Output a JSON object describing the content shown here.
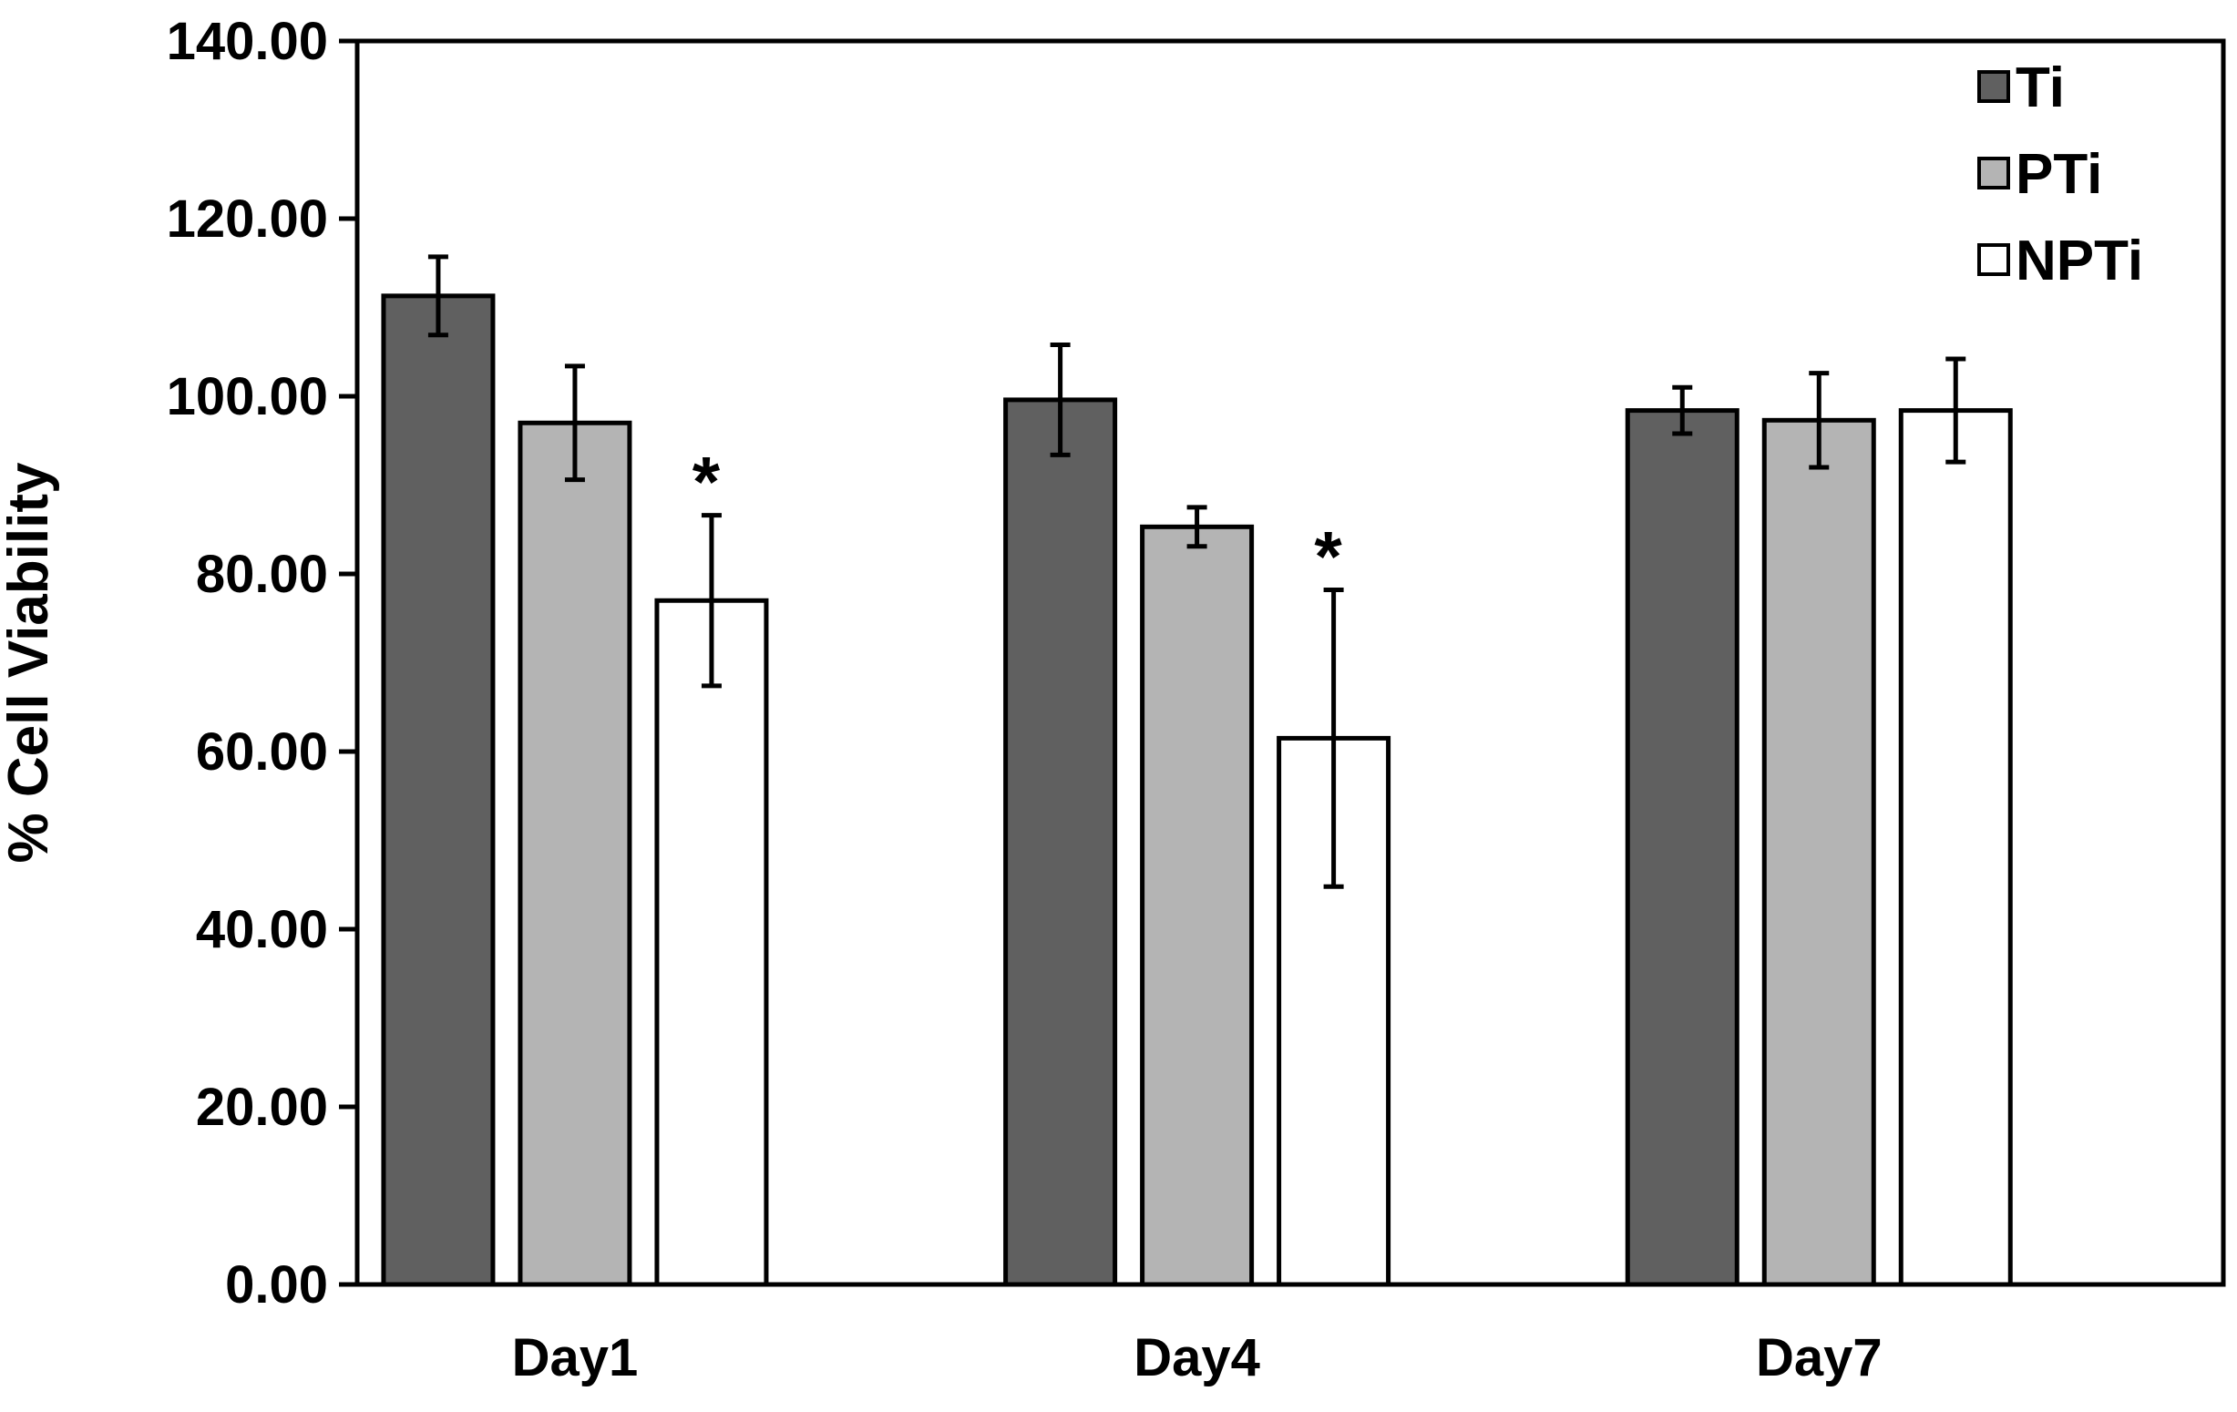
{
  "chart_data": {
    "type": "bar",
    "title": "",
    "xlabel": "",
    "ylabel": "% Cell Viability",
    "ylim": [
      0,
      140
    ],
    "yticks": [
      "0.00",
      "20.00",
      "40.00",
      "60.00",
      "80.00",
      "100.00",
      "120.00",
      "140.00"
    ],
    "categories": [
      "Day1",
      "Day4",
      "Day7"
    ],
    "grid": false,
    "legend_position": "top-right",
    "series": [
      {
        "name": "Ti",
        "color": "#606060",
        "values": [
          111.3,
          99.6,
          98.4
        ],
        "errors": [
          4.4,
          6.2,
          2.6
        ]
      },
      {
        "name": "PTi",
        "color": "#b4b4b4",
        "values": [
          97.0,
          85.3,
          97.3
        ],
        "errors": [
          6.4,
          2.2,
          5.3
        ]
      },
      {
        "name": "NPTi",
        "color": "#ffffff",
        "values": [
          77.0,
          61.5,
          98.4
        ],
        "errors": [
          9.6,
          16.7,
          5.8
        ]
      }
    ],
    "annotations": [
      {
        "text": "*",
        "category": "Day1",
        "series": "NPTi"
      },
      {
        "text": "*",
        "category": "Day4",
        "series": "NPTi"
      }
    ]
  }
}
